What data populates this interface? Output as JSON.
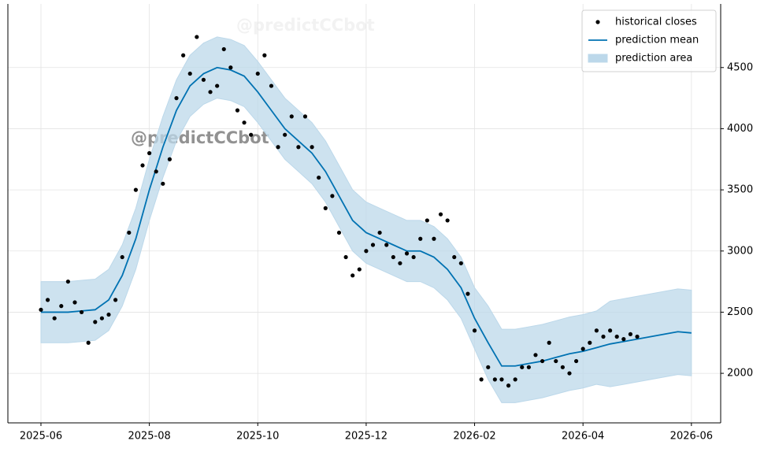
{
  "chart_data": {
    "type": "line",
    "watermark": "@predictCCbot",
    "xlim": [
      -0.61,
      12.54
    ],
    "xticks": [
      {
        "value": 0,
        "label": "2025-06"
      },
      {
        "value": 2,
        "label": "2025-08"
      },
      {
        "value": 4,
        "label": "2025-10"
      },
      {
        "value": 6,
        "label": "2025-12"
      },
      {
        "value": 8,
        "label": "2026-02"
      },
      {
        "value": 10,
        "label": "2026-04"
      },
      {
        "value": 12,
        "label": "2026-06"
      }
    ],
    "ylim": [
      1595,
      5020
    ],
    "yticks": [
      2000,
      2500,
      3000,
      3500,
      4000,
      4500
    ],
    "y_axis_side": "right",
    "grid": true,
    "legend": "upper right",
    "series": [
      {
        "name": "historical closes",
        "type": "scatter",
        "color": "#000000",
        "x": [
          0,
          0.125,
          0.25,
          0.375,
          0.5,
          0.625,
          0.75,
          0.875,
          1,
          1.125,
          1.25,
          1.375,
          1.5,
          1.625,
          1.75,
          1.875,
          2,
          2.125,
          2.25,
          2.375,
          2.5,
          2.625,
          2.75,
          2.875,
          3,
          3.125,
          3.25,
          3.375,
          3.5,
          3.625,
          3.75,
          3.875,
          4,
          4.125,
          4.25,
          4.375,
          4.5,
          4.625,
          4.75,
          4.875,
          5,
          5.125,
          5.25,
          5.375,
          5.5,
          5.625,
          5.75,
          5.875,
          6,
          6.125,
          6.25,
          6.375,
          6.5,
          6.625,
          6.75,
          6.875,
          7,
          7.125,
          7.25,
          7.375,
          7.5,
          7.625,
          7.75,
          7.875,
          8,
          8.125,
          8.25,
          8.375,
          8.5,
          8.625,
          8.75,
          8.875,
          9,
          9.125,
          9.25,
          9.375,
          9.5,
          9.625,
          9.75,
          9.875,
          10,
          10.125,
          10.25,
          10.375,
          10.5,
          10.625,
          10.75,
          10.875,
          11
        ],
        "values": [
          2520,
          2600,
          2450,
          2550,
          2750,
          2580,
          2500,
          2250,
          2420,
          2450,
          2480,
          2600,
          2950,
          3150,
          3500,
          3700,
          3800,
          3650,
          3550,
          3750,
          4250,
          4600,
          4450,
          4750,
          4400,
          4300,
          4350,
          4650,
          4500,
          4150,
          4050,
          3950,
          4450,
          4600,
          4350,
          3850,
          3950,
          4100,
          3850,
          4100,
          3850,
          3600,
          3350,
          3450,
          3150,
          2950,
          2800,
          2850,
          3000,
          3050,
          3150,
          3050,
          2950,
          2900,
          2980,
          2950,
          3100,
          3250,
          3100,
          3300,
          3250,
          2950,
          2900,
          2650,
          2350,
          1950,
          2050,
          1950,
          1950,
          1900,
          1950,
          2050,
          2050,
          2150,
          2100,
          2250,
          2100,
          2050,
          2000,
          2100,
          2200,
          2250,
          2350,
          2300,
          2350,
          2300,
          2280,
          2320,
          2300
        ]
      },
      {
        "name": "prediction mean",
        "type": "line",
        "color": "#0072b2",
        "x": [
          0,
          0.25,
          0.5,
          0.75,
          1,
          1.25,
          1.5,
          1.75,
          2,
          2.25,
          2.5,
          2.75,
          3,
          3.25,
          3.5,
          3.75,
          4,
          4.25,
          4.5,
          4.75,
          5,
          5.25,
          5.5,
          5.75,
          6,
          6.25,
          6.5,
          6.75,
          7,
          7.25,
          7.5,
          7.75,
          8,
          8.25,
          8.5,
          8.75,
          9,
          9.25,
          9.5,
          9.75,
          10,
          10.25,
          10.5,
          10.75,
          11,
          11.25,
          11.5,
          11.75,
          12
        ],
        "values": [
          2500,
          2500,
          2500,
          2510,
          2520,
          2600,
          2800,
          3100,
          3500,
          3850,
          4150,
          4350,
          4450,
          4500,
          4480,
          4430,
          4300,
          4150,
          4000,
          3900,
          3800,
          3650,
          3450,
          3250,
          3150,
          3100,
          3050,
          3000,
          3000,
          2950,
          2850,
          2700,
          2450,
          2250,
          2060,
          2060,
          2080,
          2100,
          2130,
          2160,
          2180,
          2210,
          2240,
          2260,
          2280,
          2300,
          2320,
          2340,
          2330
        ]
      },
      {
        "name": "prediction area",
        "type": "area",
        "color": "#bcd8ea",
        "x": [
          0,
          0.25,
          0.5,
          0.75,
          1,
          1.25,
          1.5,
          1.75,
          2,
          2.25,
          2.5,
          2.75,
          3,
          3.25,
          3.5,
          3.75,
          4,
          4.25,
          4.5,
          4.75,
          5,
          5.25,
          5.5,
          5.75,
          6,
          6.25,
          6.5,
          6.75,
          7,
          7.25,
          7.5,
          7.75,
          8,
          8.25,
          8.5,
          8.75,
          9,
          9.25,
          9.5,
          9.75,
          10,
          10.25,
          10.5,
          10.75,
          11,
          11.25,
          11.5,
          11.75,
          12
        ],
        "upper": [
          2750,
          2750,
          2750,
          2760,
          2770,
          2850,
          3050,
          3350,
          3750,
          4100,
          4400,
          4600,
          4700,
          4750,
          4730,
          4680,
          4550,
          4400,
          4250,
          4150,
          4050,
          3900,
          3700,
          3500,
          3400,
          3350,
          3300,
          3250,
          3250,
          3200,
          3100,
          2950,
          2700,
          2550,
          2360,
          2360,
          2380,
          2400,
          2430,
          2460,
          2480,
          2510,
          2590,
          2610,
          2630,
          2650,
          2670,
          2690,
          2680
        ],
        "lower": [
          2250,
          2250,
          2250,
          2260,
          2270,
          2350,
          2550,
          2850,
          3250,
          3600,
          3900,
          4100,
          4200,
          4250,
          4230,
          4180,
          4050,
          3900,
          3750,
          3650,
          3550,
          3400,
          3200,
          3000,
          2900,
          2850,
          2800,
          2750,
          2750,
          2700,
          2600,
          2450,
          2200,
          1950,
          1760,
          1760,
          1780,
          1800,
          1830,
          1860,
          1880,
          1910,
          1890,
          1910,
          1930,
          1950,
          1970,
          1990,
          1980
        ]
      }
    ]
  }
}
